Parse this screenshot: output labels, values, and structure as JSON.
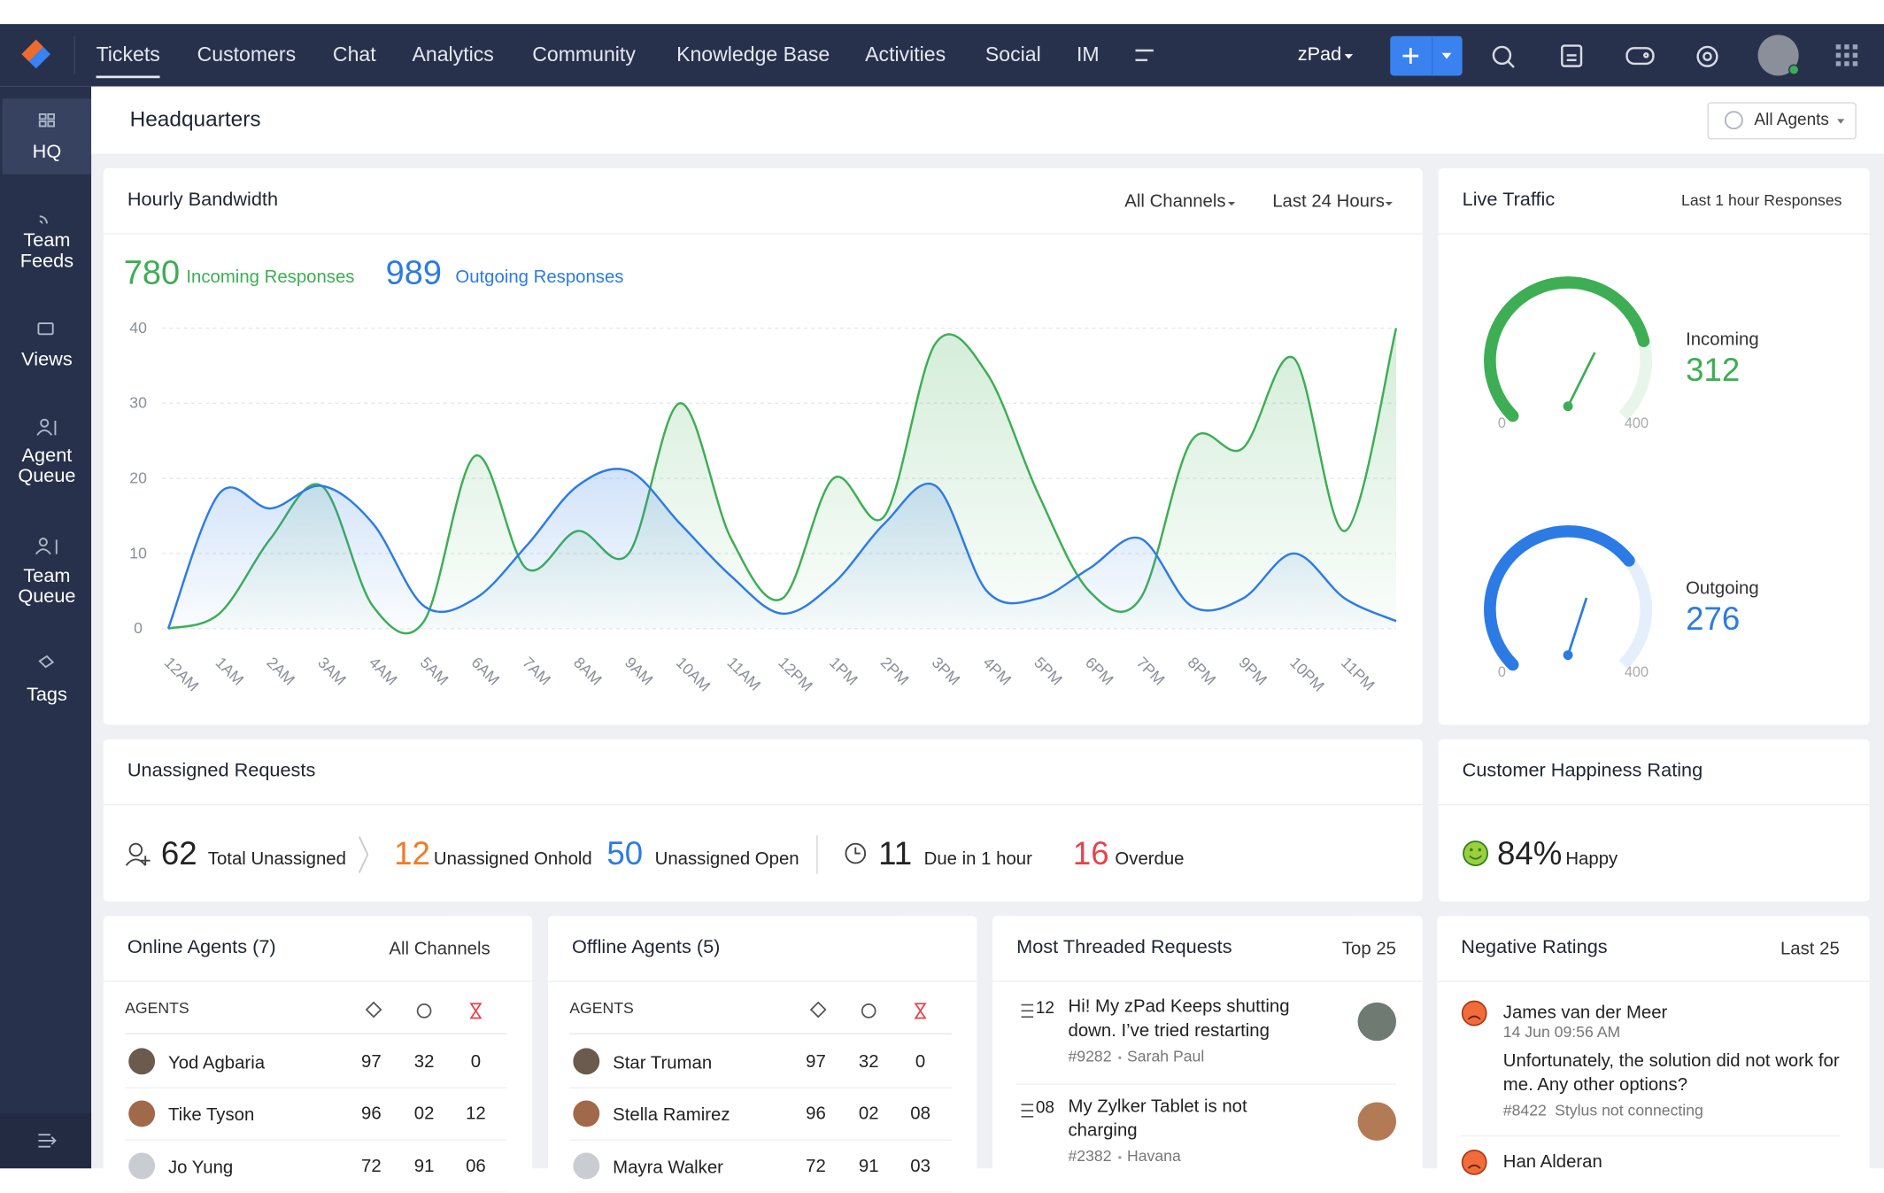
{
  "nav": {
    "tabs": [
      "Tickets",
      "Customers",
      "Chat",
      "Analytics",
      "Community",
      "Knowledge Base",
      "Activities",
      "Social",
      "IM"
    ],
    "portal": "zPad"
  },
  "sidebar": {
    "items": [
      "HQ",
      "Team Feeds",
      "Views",
      "Agent Queue",
      "Team Queue",
      "Tags"
    ]
  },
  "header": {
    "title": "Headquarters",
    "filter": "All Agents"
  },
  "bandwidth": {
    "title": "Hourly Bandwidth",
    "channel_filter": "All Channels",
    "range_filter": "Last 24 Hours",
    "incoming_total": "780",
    "incoming_label": "Incoming Responses",
    "outgoing_total": "989",
    "outgoing_label": "Outgoing Responses",
    "chart": {
      "type": "line",
      "categories": [
        "12AM",
        "1AM",
        "2AM",
        "3AM",
        "4AM",
        "5AM",
        "6AM",
        "7AM",
        "8AM",
        "9AM",
        "10AM",
        "11AM",
        "12PM",
        "1PM",
        "2PM",
        "3PM",
        "4PM",
        "5PM",
        "6PM",
        "7PM",
        "8PM",
        "9PM",
        "10PM",
        "11PM",
        null
      ],
      "series": [
        {
          "color": "#3dae54",
          "values": [
            0,
            2,
            12,
            19,
            3,
            1,
            23,
            8,
            13,
            10,
            30,
            12,
            4,
            20,
            15,
            38,
            34,
            18,
            5,
            4,
            25,
            24,
            36,
            13,
            40
          ]
        },
        {
          "color": "#2c7be5",
          "values": [
            0,
            18,
            16,
            19,
            14,
            3,
            4,
            11,
            19,
            21,
            14,
            7,
            2,
            6,
            14,
            19,
            5,
            4,
            8,
            12,
            3,
            4,
            10,
            4,
            1
          ]
        }
      ],
      "ylim": [
        0,
        40
      ],
      "yticks": [
        0,
        10,
        20,
        30,
        40
      ],
      "grid": true
    }
  },
  "live_traffic": {
    "title": "Live Traffic",
    "filter": "Last 1 hour Responses",
    "gauges": [
      {
        "label": "Incoming",
        "value": 312,
        "min": 0,
        "max": 400,
        "color": "#3dae54"
      },
      {
        "label": "Outgoing",
        "value": 276,
        "min": 0,
        "max": 400,
        "color": "#2c7be5"
      }
    ]
  },
  "unassigned": {
    "title": "Unassigned Requests",
    "stats": [
      {
        "value": "62",
        "label": "Total Unassigned"
      },
      {
        "value": "12",
        "label": "Unassigned Onhold"
      },
      {
        "value": "50",
        "label": "Unassigned Open"
      },
      {
        "value": "11",
        "label": "Due in 1 hour"
      },
      {
        "value": "16",
        "label": "Overdue"
      }
    ]
  },
  "happiness": {
    "title": "Customer Happiness Rating",
    "value": "84%",
    "label": "Happy"
  },
  "online_agents": {
    "title": "Online Agents (7)",
    "filter": "All Channels",
    "column": "AGENTS",
    "rows": [
      [
        "Yod Agbaria",
        "97",
        "32",
        "0"
      ],
      [
        "Tike Tyson",
        "96",
        "02",
        "12"
      ],
      [
        "Jo Yung",
        "72",
        "91",
        "06"
      ]
    ]
  },
  "offline_agents": {
    "title": "Offline Agents (5)",
    "column": "AGENTS",
    "rows": [
      [
        "Star Truman",
        "97",
        "32",
        "0"
      ],
      [
        "Stella Ramirez",
        "96",
        "02",
        "08"
      ],
      [
        "Mayra Walker",
        "72",
        "91",
        "03"
      ]
    ]
  },
  "threaded": {
    "title": "Most Threaded Requests",
    "filter": "Top 25",
    "items": [
      {
        "count": "12",
        "text": "Hi! My zPad Keeps shutting down. I’ve tried restarting",
        "id": "#9282",
        "customer": "Sarah Paul"
      },
      {
        "count": "08",
        "text": "My Zylker Tablet is not charging",
        "id": "#2382",
        "customer": "Havana"
      }
    ]
  },
  "negative": {
    "title": "Negative Ratings",
    "filter": "Last 25",
    "items": [
      {
        "name": "James van der Meer",
        "time": "14 Jun 09:56 AM",
        "comment": "Unfortunately, the solution did not work for me. Any other options?",
        "id": "#8422",
        "subject": "Stylus not connecting"
      },
      {
        "name": "Han Alderan"
      }
    ]
  }
}
